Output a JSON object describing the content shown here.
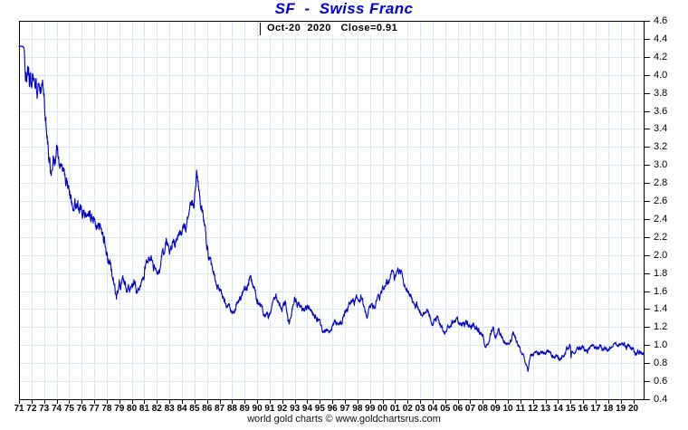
{
  "header": {
    "title": "SF  -  Swiss Franc",
    "subtitle": "Oct-20  2020   Close=0.91"
  },
  "footer": {
    "credit": "world gold charts © www.goldchartsrus.com"
  },
  "colors": {
    "title": "#0000dd",
    "line": "#0000cd",
    "grid": "#d8e7f6",
    "axis": "#000000",
    "background": "#ffffff"
  },
  "chart_data": {
    "type": "line",
    "title": "SF - Swiss Franc",
    "subtitle_date": "Oct-20 2020",
    "last_close": 0.91,
    "grid": true,
    "legend_position": "none",
    "x_axis": {
      "start": 1971,
      "end": 2020.83,
      "tick_labels": [
        "71",
        "72",
        "73",
        "74",
        "75",
        "76",
        "77",
        "78",
        "79",
        "80",
        "81",
        "82",
        "83",
        "84",
        "85",
        "86",
        "87",
        "88",
        "89",
        "90",
        "91",
        "92",
        "93",
        "94",
        "95",
        "96",
        "97",
        "98",
        "99",
        "00",
        "01",
        "02",
        "03",
        "04",
        "05",
        "06",
        "07",
        "08",
        "09",
        "10",
        "11",
        "12",
        "13",
        "14",
        "15",
        "16",
        "17",
        "18",
        "19",
        "20"
      ]
    },
    "y_axis": {
      "min": 0.4,
      "max": 4.6,
      "step": 0.2,
      "side": "right",
      "tick_labels": [
        "4.6",
        "4.4",
        "4.2",
        "4.0",
        "3.8",
        "3.6",
        "3.4",
        "3.2",
        "3.0",
        "2.8",
        "2.6",
        "2.4",
        "2.2",
        "2.0",
        "1.8",
        "1.6",
        "1.4",
        "1.2",
        "1.0",
        "0.8",
        "0.6",
        "0.4"
      ]
    },
    "series": [
      {
        "name": "SF",
        "points": [
          [
            1971.0,
            4.32
          ],
          [
            1971.4,
            4.31
          ],
          [
            1971.5,
            4.12
          ],
          [
            1971.7,
            4.02
          ],
          [
            1972.0,
            3.92
          ],
          [
            1972.3,
            3.86
          ],
          [
            1972.6,
            3.82
          ],
          [
            1973.0,
            3.76
          ],
          [
            1973.15,
            3.48
          ],
          [
            1973.35,
            3.18
          ],
          [
            1973.55,
            2.95
          ],
          [
            1973.75,
            3.12
          ],
          [
            1974.0,
            3.22
          ],
          [
            1974.25,
            2.98
          ],
          [
            1974.5,
            3.06
          ],
          [
            1974.75,
            2.82
          ],
          [
            1975.0,
            2.72
          ],
          [
            1975.3,
            2.52
          ],
          [
            1975.6,
            2.62
          ],
          [
            1976.0,
            2.54
          ],
          [
            1976.4,
            2.48
          ],
          [
            1976.8,
            2.46
          ],
          [
            1977.0,
            2.44
          ],
          [
            1977.4,
            2.36
          ],
          [
            1977.7,
            2.22
          ],
          [
            1978.0,
            2.02
          ],
          [
            1978.3,
            1.92
          ],
          [
            1978.6,
            1.68
          ],
          [
            1978.78,
            1.47
          ],
          [
            1979.0,
            1.66
          ],
          [
            1979.3,
            1.72
          ],
          [
            1979.6,
            1.62
          ],
          [
            1979.9,
            1.58
          ],
          [
            1980.15,
            1.7
          ],
          [
            1980.4,
            1.61
          ],
          [
            1980.7,
            1.65
          ],
          [
            1981.0,
            1.8
          ],
          [
            1981.3,
            2.0
          ],
          [
            1981.55,
            2.06
          ],
          [
            1981.8,
            1.9
          ],
          [
            1982.0,
            1.82
          ],
          [
            1982.3,
            1.94
          ],
          [
            1982.6,
            2.08
          ],
          [
            1982.85,
            2.14
          ],
          [
            1983.0,
            2.04
          ],
          [
            1983.3,
            2.1
          ],
          [
            1983.6,
            2.14
          ],
          [
            1984.0,
            2.22
          ],
          [
            1984.3,
            2.32
          ],
          [
            1984.6,
            2.48
          ],
          [
            1984.85,
            2.56
          ],
          [
            1985.0,
            2.66
          ],
          [
            1985.18,
            2.91
          ],
          [
            1985.35,
            2.65
          ],
          [
            1985.55,
            2.48
          ],
          [
            1985.75,
            2.32
          ],
          [
            1986.0,
            2.06
          ],
          [
            1986.3,
            1.88
          ],
          [
            1986.6,
            1.76
          ],
          [
            1987.0,
            1.6
          ],
          [
            1987.4,
            1.5
          ],
          [
            1987.8,
            1.42
          ],
          [
            1988.0,
            1.36
          ],
          [
            1988.3,
            1.44
          ],
          [
            1988.6,
            1.54
          ],
          [
            1989.0,
            1.6
          ],
          [
            1989.3,
            1.7
          ],
          [
            1989.5,
            1.77
          ],
          [
            1989.8,
            1.6
          ],
          [
            1990.0,
            1.52
          ],
          [
            1990.3,
            1.44
          ],
          [
            1990.6,
            1.32
          ],
          [
            1990.9,
            1.28
          ],
          [
            1991.2,
            1.44
          ],
          [
            1991.5,
            1.54
          ],
          [
            1991.8,
            1.44
          ],
          [
            1992.0,
            1.4
          ],
          [
            1992.25,
            1.5
          ],
          [
            1992.55,
            1.26
          ],
          [
            1992.8,
            1.42
          ],
          [
            1993.0,
            1.5
          ],
          [
            1993.3,
            1.46
          ],
          [
            1993.6,
            1.42
          ],
          [
            1994.0,
            1.46
          ],
          [
            1994.3,
            1.38
          ],
          [
            1994.6,
            1.3
          ],
          [
            1995.0,
            1.26
          ],
          [
            1995.3,
            1.13
          ],
          [
            1995.6,
            1.17
          ],
          [
            1996.0,
            1.19
          ],
          [
            1996.3,
            1.25
          ],
          [
            1996.7,
            1.27
          ],
          [
            1997.0,
            1.4
          ],
          [
            1997.3,
            1.46
          ],
          [
            1997.6,
            1.49
          ],
          [
            1998.0,
            1.47
          ],
          [
            1998.3,
            1.52
          ],
          [
            1998.7,
            1.34
          ],
          [
            1999.0,
            1.41
          ],
          [
            1999.3,
            1.48
          ],
          [
            1999.6,
            1.53
          ],
          [
            2000.0,
            1.62
          ],
          [
            2000.3,
            1.67
          ],
          [
            2000.6,
            1.74
          ],
          [
            2000.85,
            1.79
          ],
          [
            2001.0,
            1.66
          ],
          [
            2001.25,
            1.73
          ],
          [
            2001.5,
            1.8
          ],
          [
            2001.75,
            1.66
          ],
          [
            2002.0,
            1.66
          ],
          [
            2002.3,
            1.57
          ],
          [
            2002.6,
            1.47
          ],
          [
            2003.0,
            1.37
          ],
          [
            2003.3,
            1.33
          ],
          [
            2003.6,
            1.39
          ],
          [
            2004.0,
            1.26
          ],
          [
            2004.3,
            1.31
          ],
          [
            2004.6,
            1.24
          ],
          [
            2004.95,
            1.15
          ],
          [
            2005.2,
            1.2
          ],
          [
            2005.5,
            1.26
          ],
          [
            2005.8,
            1.29
          ],
          [
            2006.0,
            1.27
          ],
          [
            2006.3,
            1.21
          ],
          [
            2006.6,
            1.25
          ],
          [
            2007.0,
            1.22
          ],
          [
            2007.4,
            1.2
          ],
          [
            2007.7,
            1.16
          ],
          [
            2008.0,
            1.09
          ],
          [
            2008.2,
            0.99
          ],
          [
            2008.5,
            1.05
          ],
          [
            2008.8,
            1.16
          ],
          [
            2009.0,
            1.12
          ],
          [
            2009.3,
            1.15
          ],
          [
            2009.6,
            1.05
          ],
          [
            2009.9,
            1.02
          ],
          [
            2010.2,
            1.08
          ],
          [
            2010.45,
            1.15
          ],
          [
            2010.7,
            1.04
          ],
          [
            2011.0,
            0.93
          ],
          [
            2011.3,
            0.87
          ],
          [
            2011.6,
            0.71
          ],
          [
            2011.8,
            0.89
          ],
          [
            2012.0,
            0.92
          ],
          [
            2012.3,
            0.96
          ],
          [
            2012.6,
            0.93
          ],
          [
            2013.0,
            0.92
          ],
          [
            2013.3,
            0.96
          ],
          [
            2013.6,
            0.92
          ],
          [
            2014.0,
            0.89
          ],
          [
            2014.3,
            0.88
          ],
          [
            2014.6,
            0.93
          ],
          [
            2014.97,
            0.99
          ],
          [
            2015.04,
            0.85
          ],
          [
            2015.12,
            0.93
          ],
          [
            2015.4,
            0.95
          ],
          [
            2015.7,
            0.97
          ],
          [
            2016.0,
            0.99
          ],
          [
            2016.3,
            0.97
          ],
          [
            2016.6,
            0.98
          ],
          [
            2017.0,
            1.0
          ],
          [
            2017.3,
            0.99
          ],
          [
            2017.6,
            0.96
          ],
          [
            2018.0,
            0.94
          ],
          [
            2018.3,
            0.97
          ],
          [
            2018.6,
            0.99
          ],
          [
            2019.0,
            0.99
          ],
          [
            2019.3,
            1.0
          ],
          [
            2019.6,
            0.99
          ],
          [
            2020.0,
            0.97
          ],
          [
            2020.25,
            0.94
          ],
          [
            2020.55,
            0.95
          ],
          [
            2020.83,
            0.91
          ]
        ]
      }
    ]
  }
}
